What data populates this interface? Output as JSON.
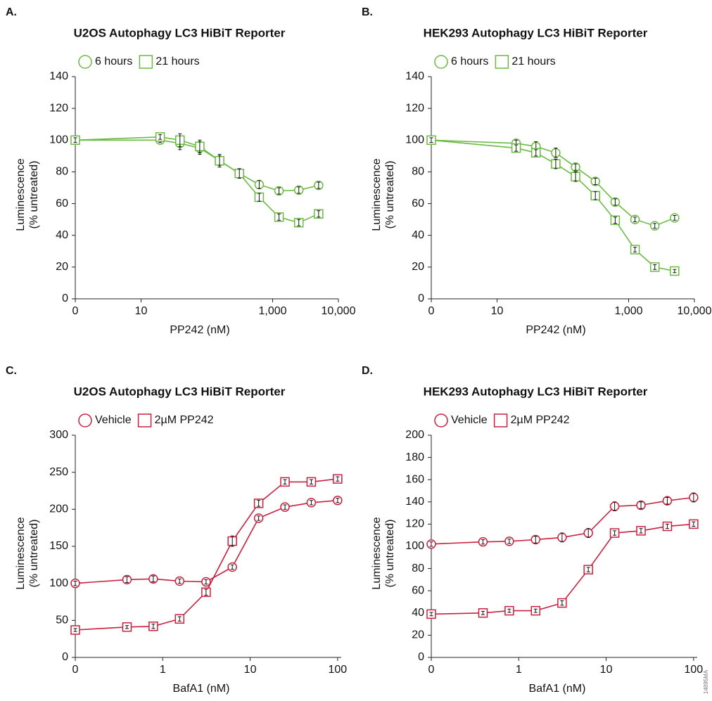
{
  "watermark": "14895MA",
  "chart_data": [
    {
      "type": "line",
      "panel": "A.",
      "title": "U2OS Autophagy LC3 HiBiT Reporter",
      "xlabel": "PP242 (nM)",
      "ylabel": [
        "Luminescence",
        "(% untreated)"
      ],
      "xscale": "log",
      "xlim": [
        0,
        10000
      ],
      "ylim": [
        0,
        140
      ],
      "xticks": [
        0,
        10,
        {
          "value": 1000,
          "label": "1,000"
        },
        {
          "value": 10000,
          "label": "10,000"
        }
      ],
      "yticks": [
        0,
        20,
        40,
        60,
        80,
        100,
        120,
        140
      ],
      "x": [
        0,
        19.5,
        39,
        78,
        156,
        312,
        625,
        1250,
        2500,
        5000
      ],
      "series": [
        {
          "name": "6 hours",
          "color": "#6cb944",
          "marker": "circle",
          "values": [
            100,
            100,
            98,
            95,
            87,
            79,
            72,
            68,
            68.5,
            71.5
          ],
          "errors": [
            1.5,
            1.5,
            4,
            4,
            3,
            3,
            2.5,
            2,
            2,
            2
          ]
        },
        {
          "name": "21 hours",
          "color": "#6cb944",
          "marker": "square",
          "values": [
            100,
            102,
            100,
            96,
            87,
            79,
            64,
            51.5,
            48,
            53.5
          ],
          "errors": [
            1.5,
            1.5,
            4,
            4,
            4,
            3,
            2.5,
            2,
            2,
            2
          ]
        }
      ]
    },
    {
      "type": "line",
      "panel": "B.",
      "title": "HEK293 Autophagy LC3 HiBiT Reporter",
      "xlabel": "PP242 (nM)",
      "ylabel": [
        "Luminescence",
        "(% untreated)"
      ],
      "xscale": "log",
      "xlim": [
        0,
        10000
      ],
      "ylim": [
        0,
        140
      ],
      "xticks": [
        0,
        10,
        {
          "value": 1000,
          "label": "1,000"
        },
        {
          "value": 10000,
          "label": "10,000"
        }
      ],
      "yticks": [
        0,
        20,
        40,
        60,
        80,
        100,
        120,
        140
      ],
      "x": [
        0,
        19.5,
        39,
        78,
        156,
        312,
        625,
        1250,
        2500,
        5000
      ],
      "series": [
        {
          "name": "6 hours",
          "color": "#6cb944",
          "marker": "circle",
          "values": [
            100,
            98,
            96,
            92,
            83,
            74,
            61,
            50,
            46,
            51
          ],
          "errors": [
            1.5,
            2,
            3,
            3,
            2,
            2,
            2,
            1.5,
            1.5,
            1.5
          ]
        },
        {
          "name": "21 hours",
          "color": "#6cb944",
          "marker": "square",
          "values": [
            100,
            95,
            92,
            85,
            77,
            65,
            49.5,
            31,
            20,
            17.5
          ],
          "errors": [
            1.5,
            2,
            2,
            3,
            3,
            2.5,
            2,
            1.5,
            1.5,
            1
          ]
        }
      ]
    },
    {
      "type": "line",
      "panel": "C.",
      "title": "U2OS Autophagy LC3 HiBiT Reporter",
      "xlabel": "BafA1 (nM)",
      "ylabel": [
        "Luminescence",
        "(% untreated)"
      ],
      "xscale": "log",
      "xlim": [
        0,
        110
      ],
      "ylim": [
        0,
        300
      ],
      "xticks": [
        0,
        1,
        10,
        100
      ],
      "yticks": [
        0,
        50,
        100,
        150,
        200,
        250,
        300
      ],
      "x": [
        0,
        0.39,
        0.78,
        1.56,
        3.13,
        6.25,
        12.5,
        25,
        50,
        100
      ],
      "series": [
        {
          "name": "Vehicle",
          "color": "#c8203f",
          "marker": "circle",
          "values": [
            100,
            105,
            106,
            103,
            102,
            122,
            188,
            203,
            209,
            212
          ],
          "errors": [
            3,
            4,
            4,
            3,
            3,
            3,
            3,
            3,
            3,
            3
          ]
        },
        {
          "name": "2µM PP242",
          "color": "#c8203f",
          "marker": "square",
          "values": [
            37,
            41,
            42,
            52,
            88,
            157,
            208,
            237,
            237,
            241
          ],
          "errors": [
            2,
            2,
            3,
            3,
            4,
            7,
            4,
            3,
            3,
            3
          ]
        }
      ]
    },
    {
      "type": "line",
      "panel": "D.",
      "title": "HEK293 Autophagy LC3 HiBiT Reporter",
      "xlabel": "BafA1 (nM)",
      "ylabel": [
        "Luminescence",
        "(% untreated)"
      ],
      "xscale": "log",
      "xlim": [
        0,
        110
      ],
      "ylim": [
        0,
        200
      ],
      "xticks": [
        0,
        1,
        10,
        100
      ],
      "yticks": [
        0,
        20,
        40,
        60,
        80,
        100,
        120,
        140,
        160,
        180,
        200
      ],
      "x": [
        0,
        0.39,
        0.78,
        1.56,
        3.13,
        6.25,
        12.5,
        25,
        50,
        100
      ],
      "series": [
        {
          "name": "Vehicle",
          "color": "#c8203f",
          "marker": "circle",
          "values": [
            102,
            104,
            104.5,
            106,
            108,
            112,
            136,
            137,
            141,
            144
          ],
          "errors": [
            2,
            2,
            2,
            3,
            4,
            4,
            4,
            3,
            3,
            4
          ]
        },
        {
          "name": "2µM PP242",
          "color": "#c8203f",
          "marker": "square",
          "values": [
            39,
            40,
            42,
            42,
            49,
            79,
            112,
            114,
            118,
            120
          ],
          "errors": [
            1.5,
            1.5,
            1.5,
            1.5,
            2,
            2,
            2,
            2,
            2,
            2
          ]
        }
      ]
    }
  ]
}
